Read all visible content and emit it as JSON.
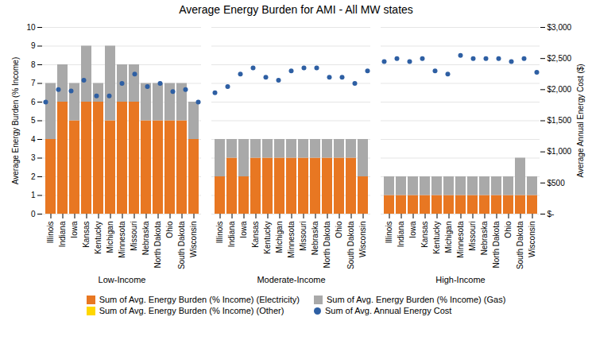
{
  "chart_data": {
    "type": "bar",
    "title": "Average Energy Burden for AMI - All MW states",
    "ylabel": "Average Energy Burden (% Income)",
    "y2label": "Average Annual Energy Cost ($)",
    "categories": [
      "Illinois",
      "Indiana",
      "Iowa",
      "Kansas",
      "Kentucky",
      "Michigan",
      "Minnesota",
      "Missouri",
      "Nebraska",
      "North Dakota",
      "Ohio",
      "South Dakota",
      "Wisconsin",
      "Illinois",
      "Indiana",
      "Iowa",
      "Kansas",
      "Kentucky",
      "Michigan",
      "Minnesota",
      "Missouri",
      "Nebraska",
      "North Dakota",
      "Ohio",
      "South Dakota",
      "Wisconsin",
      "Illinois",
      "Indiana",
      "Iowa",
      "Kansas",
      "Kentucky",
      "Michigan",
      "Minnesota",
      "Missouri",
      "Nebraska",
      "North Dakota",
      "Ohio",
      "South Dakota",
      "Wisconsin"
    ],
    "annotations": [
      "Low-Income",
      "Moderate-Income",
      "High-Income"
    ],
    "series": [
      {
        "name": "Sum of Avg. Energy Burden (% Income) (Electricity)",
        "color": "#E87722",
        "values": [
          4,
          6,
          5,
          6,
          6,
          5,
          6,
          6,
          5,
          5,
          5,
          5,
          4,
          2,
          3,
          2,
          3,
          3,
          3,
          3,
          3,
          3,
          3,
          3,
          3,
          2,
          1,
          1,
          1,
          1,
          1,
          1,
          1,
          1,
          1,
          1,
          1,
          1,
          1
        ]
      },
      {
        "name": "Sum of Avg. Energy Burden (% Income) (Gas)",
        "color": "#A9A9A9",
        "values": [
          3,
          2,
          2,
          3,
          1,
          4,
          2,
          2,
          2,
          2,
          2,
          2,
          2,
          2,
          1,
          2,
          1,
          1,
          1,
          1,
          1,
          1,
          1,
          1,
          1,
          2,
          1,
          1,
          1,
          1,
          1,
          1,
          1,
          1,
          1,
          1,
          1,
          2,
          1
        ]
      },
      {
        "name": "Sum of Avg. Energy Burden (% Income) (Other)",
        "color": "#FFD700",
        "values": [
          0,
          0,
          0,
          0,
          0,
          0,
          0,
          0,
          0,
          0,
          0,
          0,
          0,
          0,
          0,
          0,
          0,
          0,
          0,
          0,
          0,
          0,
          0,
          0,
          0,
          0,
          0,
          0,
          0,
          0,
          0,
          0,
          0,
          0,
          0,
          0,
          0,
          0,
          0
        ]
      },
      {
        "name": "Sum of Avg. Annual Energy Cost",
        "type": "scatter",
        "axis": "y2",
        "color": "#2E5FA3",
        "marker": "circle",
        "values": [
          1800,
          2000,
          1980,
          2150,
          1900,
          1900,
          2100,
          2250,
          2050,
          2100,
          1970,
          2000,
          1800,
          1950,
          2050,
          2250,
          2350,
          2200,
          2150,
          2300,
          2350,
          2350,
          2200,
          2200,
          2100,
          2300,
          2450,
          2500,
          2450,
          2500,
          2300,
          2250,
          2550,
          2500,
          2500,
          2500,
          2450,
          2500,
          2280
        ]
      }
    ],
    "stacked": true,
    "grid": true,
    "legend": "bottom",
    "ylim": [
      0,
      10
    ],
    "yticks": [
      0,
      1,
      2,
      3,
      4,
      5,
      6,
      7,
      8,
      9,
      10
    ],
    "y2lim": [
      0,
      3000
    ],
    "y2ticks": [
      {
        "value": 0,
        "label": "$-"
      },
      {
        "value": 500,
        "label": "$500"
      },
      {
        "value": 1000,
        "label": "$1,000"
      },
      {
        "value": 1500,
        "label": "$1,500"
      },
      {
        "value": 2000,
        "label": "$2,000"
      },
      {
        "value": 2500,
        "label": "$2,500"
      },
      {
        "value": 3000,
        "label": "$3,000"
      }
    ]
  }
}
